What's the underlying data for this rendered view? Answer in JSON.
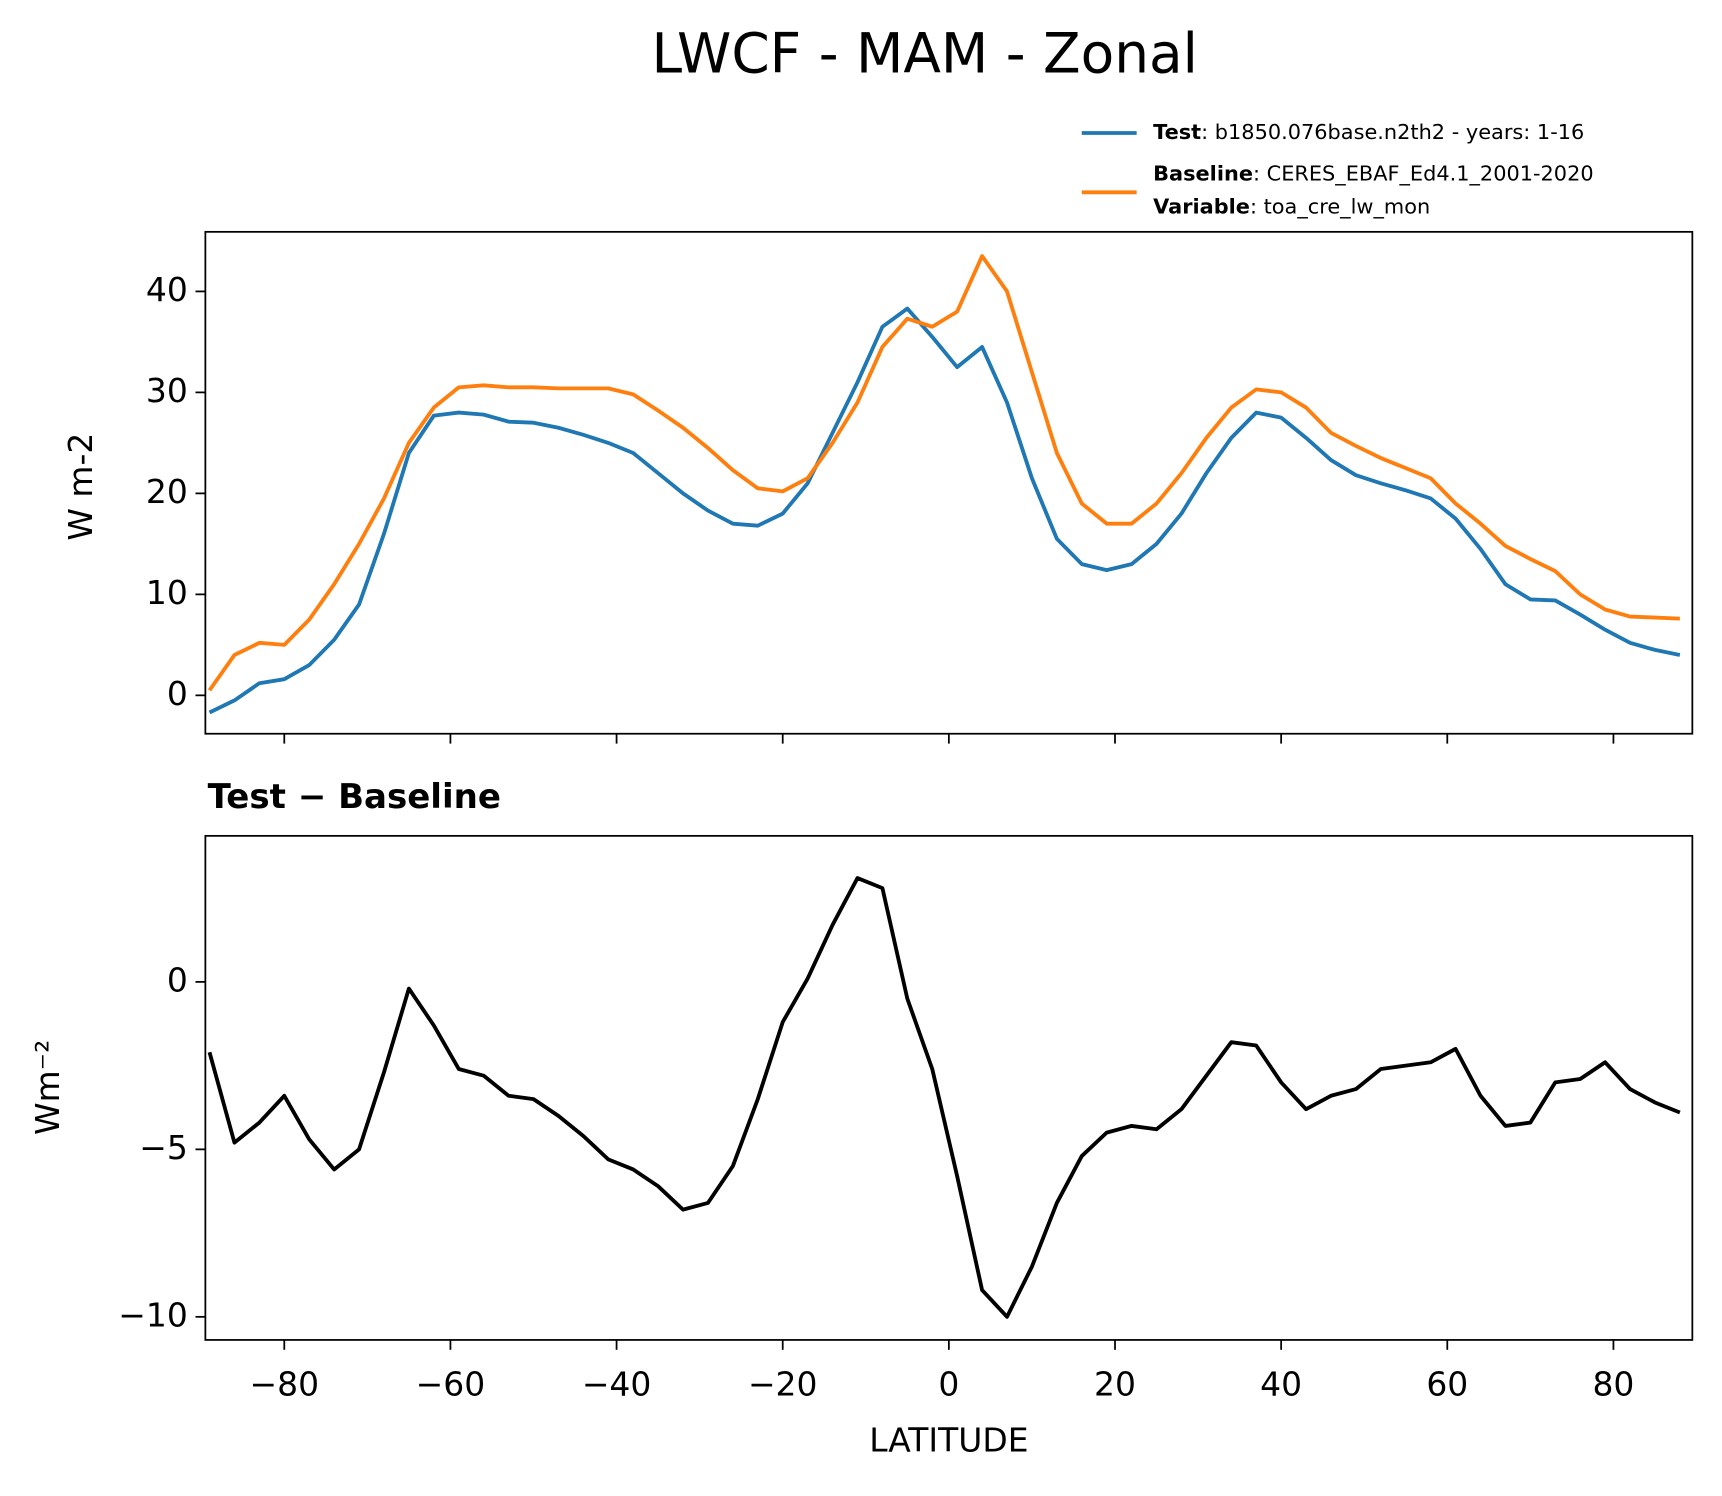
{
  "chart_data": [
    {
      "type": "line",
      "title": "LWCF - MAM - Zonal",
      "ylabel": "W m-2",
      "x": [
        -89,
        -86,
        -83,
        -80,
        -77,
        -74,
        -71,
        -68,
        -65,
        -62,
        -59,
        -56,
        -53,
        -50,
        -47,
        -44,
        -41,
        -38,
        -35,
        -32,
        -29,
        -26,
        -23,
        -20,
        -17,
        -14,
        -11,
        -8,
        -5,
        -2,
        1,
        4,
        7,
        10,
        13,
        16,
        19,
        22,
        25,
        28,
        31,
        34,
        37,
        40,
        43,
        46,
        49,
        52,
        55,
        58,
        61,
        64,
        67,
        70,
        73,
        76,
        79,
        82,
        85,
        88
      ],
      "series": [
        {
          "name": "Test",
          "label": ": b1850.076base.n2th2 - years: 1-16",
          "color": "#1f77b4",
          "values": [
            -1.7,
            -0.5,
            1.2,
            1.6,
            3,
            5.5,
            9,
            16,
            24,
            27.7,
            28,
            27.8,
            27.1,
            27,
            26.5,
            25.8,
            25,
            24,
            22,
            20,
            18.3,
            17,
            16.8,
            18,
            21,
            26,
            31,
            36.5,
            38.3,
            35.5,
            32.5,
            34.5,
            29,
            21.5,
            15.5,
            13,
            12.4,
            13,
            15,
            18,
            22,
            25.5,
            28,
            27.5,
            25.5,
            23.3,
            21.8,
            21,
            20.3,
            19.5,
            17.5,
            14.5,
            11,
            9.5,
            9.4,
            8,
            6.5,
            5.2,
            4.5,
            4
          ]
        },
        {
          "name": "Baseline",
          "label": ": CERES_EBAF_Ed4.1_2001-2020",
          "color": "#ff7f0e",
          "values": [
            0.5,
            4,
            5.2,
            5,
            7.5,
            11,
            15,
            19.5,
            25,
            28.5,
            30.5,
            30.7,
            30.5,
            30.5,
            30.4,
            30.4,
            30.4,
            29.8,
            28.2,
            26.5,
            24.5,
            22.3,
            20.5,
            20.2,
            21.5,
            25,
            29,
            34.5,
            37.3,
            36.5,
            38,
            43.5,
            40,
            32,
            24,
            19,
            17,
            17,
            19,
            22,
            25.5,
            28.5,
            30.3,
            30,
            28.5,
            26,
            24.7,
            23.5,
            22.5,
            21.5,
            19,
            17,
            14.8,
            13.5,
            12.3,
            10,
            8.5,
            7.8,
            7.7,
            7.6
          ]
        }
      ],
      "legend_extra": {
        "name": "Variable",
        "label": ": toa_cre_lw_mon"
      },
      "xlim": [
        -89.5,
        89.5
      ],
      "xticks": [
        -80,
        -60,
        -40,
        -20,
        0,
        20,
        40,
        60,
        80
      ],
      "ylim": [
        -3.8,
        45.9
      ],
      "yticks": [
        0,
        10,
        20,
        30,
        40
      ]
    },
    {
      "type": "line",
      "title": "Test − Baseline",
      "ylabel": "Wm⁻²",
      "xlabel": "LATITUDE",
      "x": [
        -89,
        -86,
        -83,
        -80,
        -77,
        -74,
        -71,
        -68,
        -65,
        -62,
        -59,
        -56,
        -53,
        -50,
        -47,
        -44,
        -41,
        -38,
        -35,
        -32,
        -29,
        -26,
        -23,
        -20,
        -17,
        -14,
        -11,
        -8,
        -5,
        -2,
        1,
        4,
        7,
        10,
        13,
        16,
        19,
        22,
        25,
        28,
        31,
        34,
        37,
        40,
        43,
        46,
        49,
        52,
        55,
        58,
        61,
        64,
        67,
        70,
        73,
        76,
        79,
        82,
        85,
        88
      ],
      "series": [
        {
          "color": "#000000",
          "values": [
            -2.1,
            -4.8,
            -4.2,
            -3.4,
            -4.7,
            -5.6,
            -5,
            -2.7,
            -0.2,
            -1.3,
            -2.6,
            -2.8,
            -3.4,
            -3.5,
            -4,
            -4.6,
            -5.3,
            -5.6,
            -6.1,
            -6.8,
            -6.6,
            -5.5,
            -3.5,
            -1.2,
            0.1,
            1.7,
            3.1,
            2.8,
            -0.5,
            -2.6,
            -5.8,
            -9.2,
            -10,
            -8.5,
            -6.6,
            -5.2,
            -4.5,
            -4.3,
            -4.4,
            -3.8,
            -2.8,
            -1.8,
            -1.9,
            -3,
            -3.8,
            -3.4,
            -3.2,
            -2.6,
            -2.5,
            -2.4,
            -2,
            -3.4,
            -4.3,
            -4.2,
            -3,
            -2.9,
            -2.4,
            -3.2,
            -3.6,
            -3.9
          ]
        }
      ],
      "xlim": [
        -89.5,
        89.5
      ],
      "xticks": [
        {
          "value": -80,
          "label": "−80"
        },
        {
          "value": -60,
          "label": "−60"
        },
        {
          "value": -40,
          "label": "−40"
        },
        {
          "value": -20,
          "label": "−20"
        },
        0,
        20,
        40,
        60,
        80
      ],
      "ylim": [
        -10.69,
        4.36
      ],
      "yticks": [
        {
          "value": -10,
          "label": "−10"
        },
        {
          "value": -5,
          "label": "−5"
        },
        0
      ]
    }
  ]
}
